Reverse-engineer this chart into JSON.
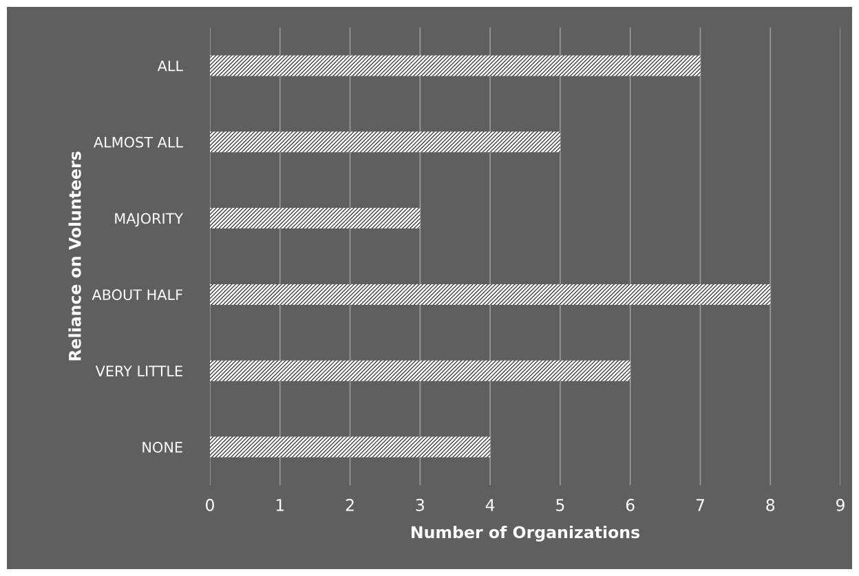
{
  "chart_data": {
    "type": "bar",
    "orientation": "horizontal",
    "xlabel": "Number of Organizations",
    "ylabel": "Reliance on Volunteers",
    "categories": [
      "ALL",
      "ALMOST ALL",
      "MAJORITY",
      "ABOUT HALF",
      "VERY LITTLE",
      "NONE"
    ],
    "values": [
      7,
      5,
      3,
      8,
      6,
      4
    ],
    "color": "#ffffff",
    "xlim": [
      0,
      9
    ],
    "xticks": [
      0,
      1,
      2,
      3,
      4,
      5,
      6,
      7,
      8,
      9
    ],
    "grid": "x",
    "legend": false
  }
}
